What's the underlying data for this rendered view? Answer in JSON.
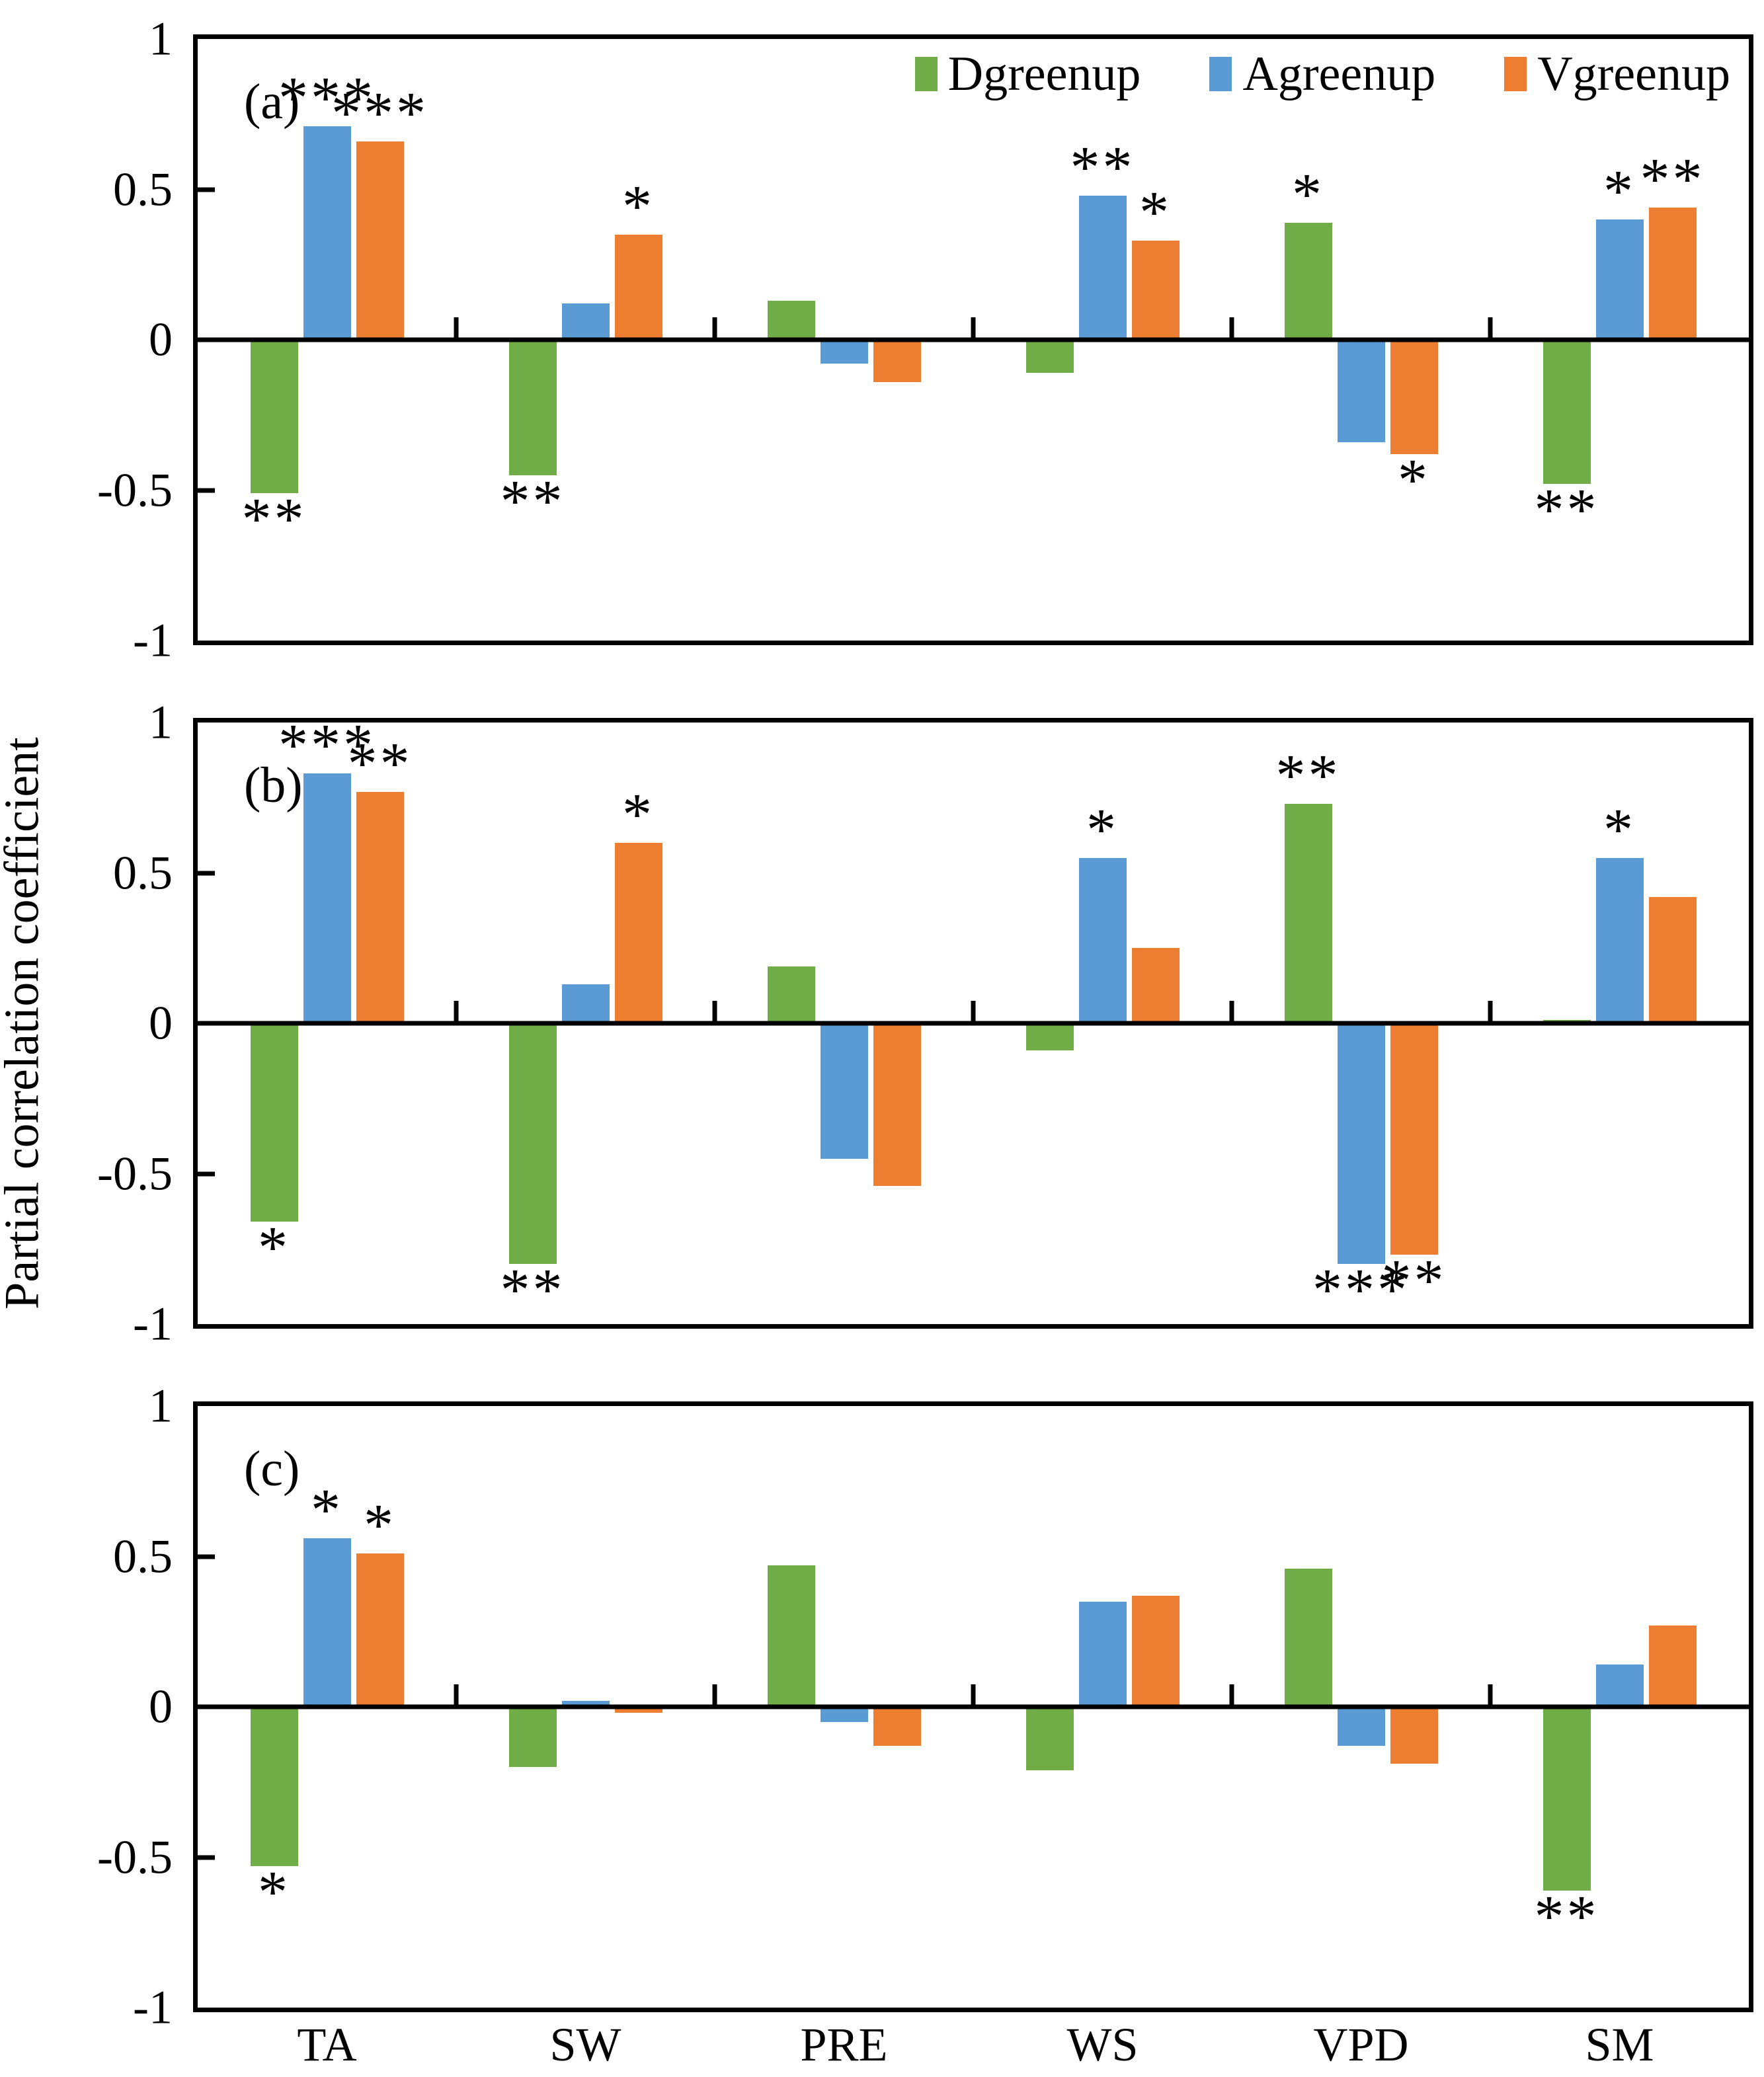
{
  "chart_data": {
    "type": "bar",
    "title": "",
    "ylabel": "Partial correlation coefficient",
    "ylim": [
      -1,
      1
    ],
    "yticks": [
      1,
      0.5,
      0,
      -0.5,
      -1
    ],
    "ytick_labels": [
      "1",
      "0.5",
      "0",
      "-0.5",
      "-1"
    ],
    "grid": "off",
    "categories": [
      "TA",
      "SW",
      "PRE",
      "WS",
      "VPD",
      "SM"
    ],
    "legend": {
      "position": "top-right inside panel (a)",
      "entries": [
        "Dgreenup",
        "Agreenup",
        "Vgreenup"
      ]
    },
    "colors": {
      "Dgreenup": "#70AD47",
      "Agreenup": "#5B9BD5",
      "Vgreenup": "#ED7D31",
      "axis": "#000000"
    },
    "panels": [
      {
        "label": "(a)",
        "series": [
          {
            "name": "Dgreenup",
            "color": "#70AD47",
            "values": [
              -0.51,
              -0.45,
              0.13,
              -0.11,
              0.39,
              -0.48
            ],
            "significance": [
              "**",
              "**",
              "",
              "",
              "*",
              "**"
            ]
          },
          {
            "name": "Agreenup",
            "color": "#5B9BD5",
            "values": [
              0.71,
              0.12,
              -0.08,
              0.48,
              -0.34,
              0.4
            ],
            "significance": [
              "***",
              "",
              "",
              "**",
              "",
              "*"
            ]
          },
          {
            "name": "Vgreenup",
            "color": "#ED7D31",
            "values": [
              0.66,
              0.35,
              -0.14,
              0.33,
              -0.38,
              0.44
            ],
            "significance": [
              "***",
              "*",
              "",
              "*",
              "*",
              "**"
            ]
          }
        ]
      },
      {
        "label": "(b)",
        "series": [
          {
            "name": "Dgreenup",
            "color": "#70AD47",
            "values": [
              -0.66,
              -0.8,
              0.19,
              -0.09,
              0.73,
              0.01
            ],
            "significance": [
              "*",
              "**",
              "",
              "",
              "**",
              ""
            ]
          },
          {
            "name": "Agreenup",
            "color": "#5B9BD5",
            "values": [
              0.83,
              0.13,
              -0.45,
              0.55,
              -0.8,
              0.55
            ],
            "significance": [
              "***",
              "",
              "",
              "*",
              "***",
              "*"
            ]
          },
          {
            "name": "Vgreenup",
            "color": "#ED7D31",
            "values": [
              0.77,
              0.6,
              -0.54,
              0.25,
              -0.77,
              0.42
            ],
            "significance": [
              "**",
              "*",
              "",
              "",
              "**",
              ""
            ]
          }
        ]
      },
      {
        "label": "(c)",
        "series": [
          {
            "name": "Dgreenup",
            "color": "#70AD47",
            "values": [
              -0.53,
              -0.2,
              0.47,
              -0.21,
              0.46,
              -0.61
            ],
            "significance": [
              "*",
              "",
              "",
              "",
              "",
              "**"
            ]
          },
          {
            "name": "Agreenup",
            "color": "#5B9BD5",
            "values": [
              0.56,
              0.02,
              -0.05,
              0.35,
              -0.13,
              0.14
            ],
            "significance": [
              "*",
              "",
              "",
              "",
              "",
              ""
            ]
          },
          {
            "name": "Vgreenup",
            "color": "#ED7D31",
            "values": [
              0.51,
              -0.02,
              -0.13,
              0.37,
              -0.19,
              0.27
            ],
            "significance": [
              "*",
              "",
              "",
              "",
              "",
              ""
            ]
          }
        ]
      }
    ]
  }
}
